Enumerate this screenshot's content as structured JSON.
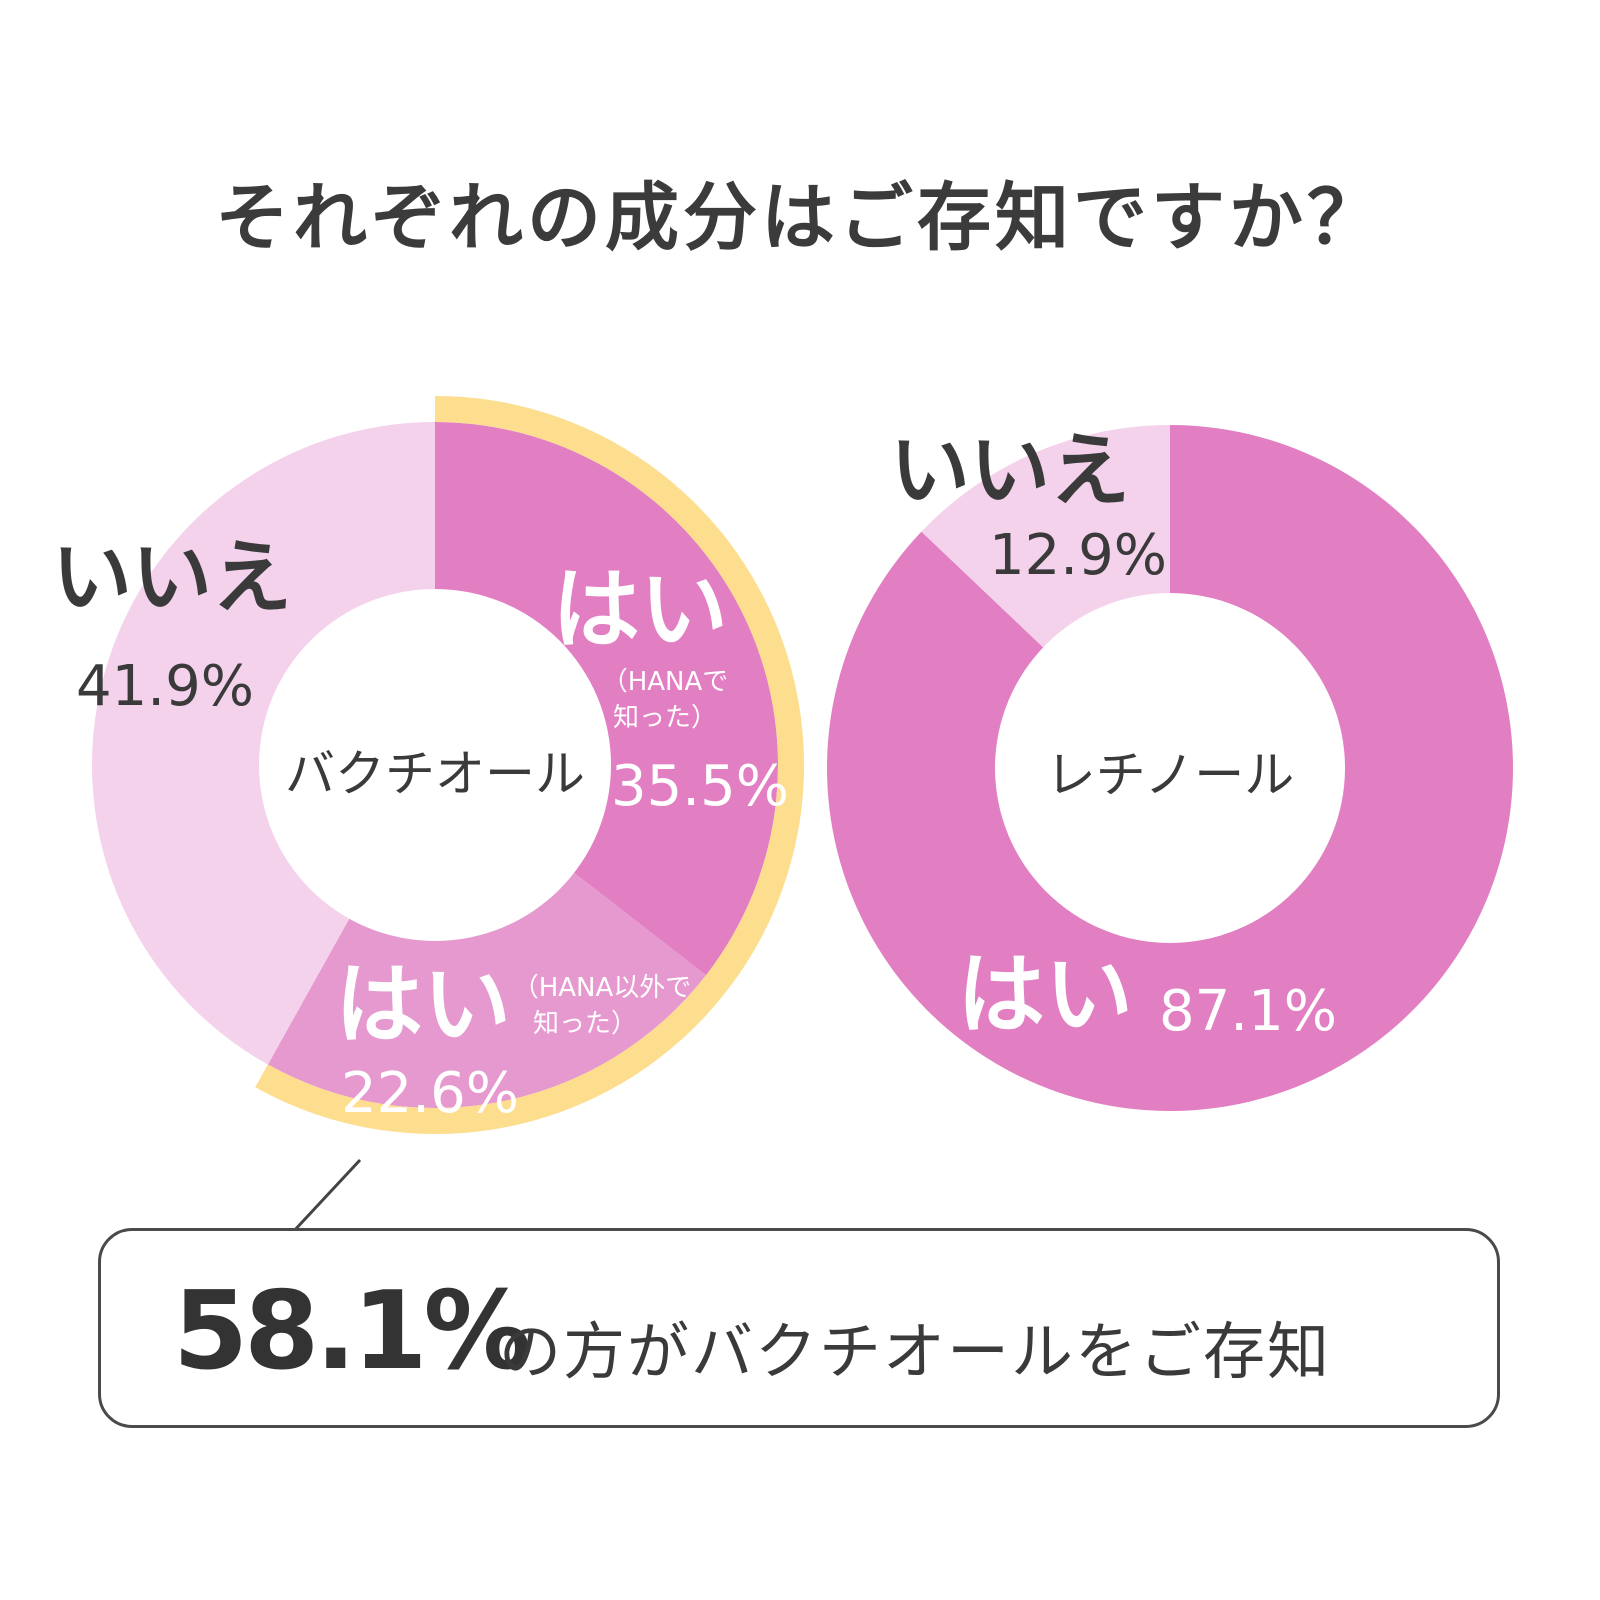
{
  "title": "それぞれの成分はご存知ですか？",
  "colors": {
    "yes_hana": "#e27fc2",
    "yes_other": "#e699cf",
    "no": "#f4d2ec",
    "highlight": "#fddd8e",
    "text_dark": "#3a3a3a",
    "text_light": "#ffffff"
  },
  "chart_data": [
    {
      "type": "pie",
      "center_label": "バクチオール",
      "slices": [
        {
          "label": "はい",
          "sublabel_line1": "（HANAで",
          "sublabel_line2": "知った）",
          "value": 35.5,
          "value_label": "35.5%"
        },
        {
          "label": "はい",
          "sublabel_line1": "（HANA以外で",
          "sublabel_line2": "知った）",
          "value": 22.6,
          "value_label": "22.6%"
        },
        {
          "label": "いいえ",
          "value": 41.9,
          "value_label": "41.9%"
        }
      ]
    },
    {
      "type": "pie",
      "center_label": "レチノール",
      "slices": [
        {
          "label": "はい",
          "value": 87.1,
          "value_label": "87.1%"
        },
        {
          "label": "いいえ",
          "value": 12.9,
          "value_label": "12.9%"
        }
      ]
    }
  ],
  "callout": {
    "percent": "58.1%",
    "text": "の方がバクチオールをご存知"
  }
}
